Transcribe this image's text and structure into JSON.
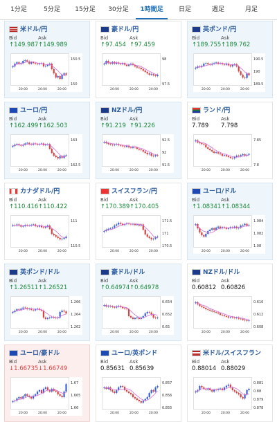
{
  "tabs": [
    "1分足",
    "5分足",
    "15分足",
    "30分足",
    "1時間足",
    "日足",
    "週足",
    "月足"
  ],
  "active_tab": "1時間足",
  "colors": {
    "up": "#3a5fd9",
    "down": "#d94040",
    "ma": "#d66bd8",
    "header": "#2b5b9e"
  },
  "labels": {
    "bid": "Bid",
    "ask": "Ask"
  },
  "pairs": [
    {
      "name": "米ドル/円",
      "bid": "↑149.987",
      "ask": "↑149.989",
      "flag": "US",
      "bg": "blue",
      "yticks": [
        "150.5",
        "150"
      ],
      "xticks": [
        "20:00",
        "20:00",
        "20:00"
      ]
    },
    {
      "name": "豪ドル/円",
      "bid": "↑97.454",
      "ask": "↑97.459",
      "flag": "AU",
      "bg": "plain",
      "yticks": [
        "98",
        "97.5"
      ],
      "xticks": [
        "20:00",
        "20:00",
        "20:00"
      ]
    },
    {
      "name": "英ポンド/円",
      "bid": "↑189.755",
      "ask": "↑189.762",
      "flag": "GB",
      "bg": "blue",
      "yticks": [
        "190.5",
        "190",
        "189.5"
      ],
      "xticks": [
        "20:00",
        "20:00",
        "20:00"
      ]
    },
    {
      "name": "ユーロ/円",
      "bid": "↑162.499",
      "ask": "↑162.503",
      "flag": "EU",
      "bg": "blue",
      "yticks": [
        "163",
        "162.5"
      ],
      "xticks": [
        "20:00",
        "20:00",
        "20:00"
      ]
    },
    {
      "name": "NZドル/円",
      "bid": "↑91.219",
      "ask": "↑91.226",
      "flag": "NZ",
      "bg": "blue",
      "yticks": [
        "92.5",
        "92",
        "91.5"
      ],
      "xticks": [
        "20:00",
        "20:00",
        "20:00"
      ]
    },
    {
      "name": "ランド/円",
      "bid": "7.789",
      "ask": "7.798",
      "flag": "ZA",
      "bg": "plain",
      "yticks": [
        "7.85",
        "7.8"
      ],
      "xticks": [
        "20:00",
        "20:00",
        "20:00"
      ]
    },
    {
      "name": "カナダドル/円",
      "bid": "↑110.416",
      "ask": "↑110.422",
      "flag": "CA",
      "bg": "plain",
      "yticks": [
        "111",
        "110.5"
      ],
      "xticks": [
        "20:00",
        "20:00",
        "20:00"
      ]
    },
    {
      "name": "スイスフラン/円",
      "bid": "↑170.389",
      "ask": "↑170.405",
      "flag": "CH",
      "bg": "plain",
      "yticks": [
        "171.5",
        "171",
        "170.5"
      ],
      "xticks": [
        "20:00",
        "20:00",
        "20:00"
      ]
    },
    {
      "name": "ユーロ/ドル",
      "bid": "↑1.08341",
      "ask": "↑1.08344",
      "flag": "EU",
      "bg": "blue",
      "yticks": [
        "1.084",
        "1.082",
        "1.08"
      ],
      "xticks": [
        "20:00",
        "20:00",
        "20:00"
      ]
    },
    {
      "name": "英ポンド/ドル",
      "bid": "↑1.26511",
      "ask": "↑1.26521",
      "flag": "GB",
      "bg": "blue",
      "yticks": [
        "1.266",
        "1.264",
        "1.262"
      ],
      "xticks": [
        "20:00",
        "20:00",
        "20:00"
      ]
    },
    {
      "name": "豪ドル/ドル",
      "bid": "↑0.64974",
      "ask": "↑0.64978",
      "flag": "AU",
      "bg": "blue",
      "yticks": [
        "0.654",
        "0.652",
        "0.65"
      ],
      "xticks": [
        "20:00",
        "20:00",
        "20:00"
      ]
    },
    {
      "name": "NZドル/ドル",
      "bid": "0.60812",
      "ask": "0.60826",
      "flag": "NZ",
      "bg": "plain",
      "yticks": [
        "0.616",
        "0.612",
        "0.608"
      ],
      "xticks": [
        "20:00",
        "20:00",
        "20:00"
      ]
    },
    {
      "name": "ユーロ/豪ドル",
      "bid": "↓1.66735",
      "ask": "↓1.66749",
      "flag": "EU",
      "bg": "red",
      "yticks": [
        "1.67",
        "1.665",
        "1.66"
      ],
      "xticks": [
        "20:00",
        "20:00",
        "20:00"
      ]
    },
    {
      "name": "ユーロ/英ポンド",
      "bid": "0.85631",
      "ask": "0.85639",
      "flag": "EU",
      "bg": "plain",
      "yticks": [
        "0.857",
        "0.856",
        "0.855"
      ],
      "xticks": [
        "20:00",
        "20:00",
        "20:00"
      ]
    },
    {
      "name": "米ドル/スイスフラン",
      "bid": "0.88014",
      "ask": "0.88029",
      "flag": "US",
      "bg": "plain",
      "yticks": [
        "0.881",
        "0.88",
        "0.879",
        "0.878"
      ],
      "xticks": [
        "20:00",
        "20:00",
        "20:00"
      ]
    }
  ],
  "series": [
    [
      0.6,
      0.7,
      0.75,
      0.7,
      0.72,
      0.8,
      0.82,
      0.78,
      0.7,
      0.75,
      0.72,
      0.7,
      0.68,
      0.7,
      0.72,
      0.6,
      0.62,
      0.66,
      0.7,
      0.5,
      0.35,
      0.2,
      0.25,
      0.15,
      0.3,
      0.35,
      0.3
    ],
    [
      0.7,
      0.8,
      0.72,
      0.7,
      0.76,
      0.7,
      0.74,
      0.7,
      0.68,
      0.72,
      0.66,
      0.62,
      0.66,
      0.7,
      0.65,
      0.6,
      0.56,
      0.55,
      0.5,
      0.45,
      0.4,
      0.35,
      0.3,
      0.32,
      0.28,
      0.25,
      0.3
    ],
    [
      0.55,
      0.6,
      0.58,
      0.62,
      0.7,
      0.72,
      0.68,
      0.66,
      0.7,
      0.72,
      0.74,
      0.7,
      0.72,
      0.68,
      0.66,
      0.7,
      0.64,
      0.6,
      0.66,
      0.68,
      0.6,
      0.42,
      0.3,
      0.2,
      0.18,
      0.35,
      0.28
    ],
    [
      0.65,
      0.7,
      0.72,
      0.68,
      0.66,
      0.7,
      0.74,
      0.76,
      0.72,
      0.7,
      0.74,
      0.72,
      0.7,
      0.72,
      0.74,
      0.68,
      0.7,
      0.72,
      0.55,
      0.4,
      0.3,
      0.25,
      0.2,
      0.28,
      0.22,
      0.3,
      0.32
    ],
    [
      0.8,
      0.75,
      0.72,
      0.7,
      0.68,
      0.7,
      0.72,
      0.68,
      0.66,
      0.64,
      0.62,
      0.66,
      0.6,
      0.58,
      0.62,
      0.6,
      0.55,
      0.52,
      0.5,
      0.45,
      0.4,
      0.35,
      0.38,
      0.3,
      0.28,
      0.32,
      0.3
    ],
    [
      0.85,
      0.78,
      0.75,
      0.72,
      0.7,
      0.6,
      0.55,
      0.5,
      0.45,
      0.4,
      0.42,
      0.38,
      0.35,
      0.3,
      0.32,
      0.28,
      0.25,
      0.22,
      0.2,
      0.25,
      0.3,
      0.28,
      0.32,
      0.35,
      0.3,
      0.33,
      0.36
    ],
    [
      0.72,
      0.7,
      0.74,
      0.7,
      0.66,
      0.68,
      0.72,
      0.7,
      0.7,
      0.72,
      0.74,
      0.68,
      0.66,
      0.7,
      0.64,
      0.62,
      0.66,
      0.7,
      0.58,
      0.4,
      0.35,
      0.3,
      0.25,
      0.2,
      0.22,
      0.25,
      0.3
    ],
    [
      0.5,
      0.55,
      0.58,
      0.6,
      0.62,
      0.7,
      0.74,
      0.8,
      0.76,
      0.72,
      0.75,
      0.78,
      0.76,
      0.74,
      0.76,
      0.72,
      0.74,
      0.7,
      0.74,
      0.55,
      0.38,
      0.3,
      0.25,
      0.2,
      0.22,
      0.28,
      0.3
    ],
    [
      0.75,
      0.6,
      0.45,
      0.35,
      0.3,
      0.4,
      0.5,
      0.55,
      0.6,
      0.55,
      0.62,
      0.66,
      0.6,
      0.64,
      0.62,
      0.58,
      0.6,
      0.64,
      0.62,
      0.66,
      0.6,
      0.62,
      0.7,
      0.72,
      0.76,
      0.7,
      0.72
    ],
    [
      0.5,
      0.55,
      0.6,
      0.58,
      0.62,
      0.66,
      0.64,
      0.6,
      0.62,
      0.58,
      0.56,
      0.6,
      0.62,
      0.58,
      0.55,
      0.3,
      0.25,
      0.28,
      0.3,
      0.32,
      0.3,
      0.28,
      0.3,
      0.5,
      0.55,
      0.52,
      0.45
    ],
    [
      0.75,
      0.7,
      0.72,
      0.7,
      0.68,
      0.66,
      0.7,
      0.72,
      0.68,
      0.64,
      0.62,
      0.6,
      0.35,
      0.3,
      0.25,
      0.28,
      0.3,
      0.25,
      0.3,
      0.35,
      0.45,
      0.5,
      0.48,
      0.4,
      0.3,
      0.28,
      0.3
    ],
    [
      0.85,
      0.78,
      0.72,
      0.68,
      0.65,
      0.6,
      0.58,
      0.55,
      0.52,
      0.5,
      0.48,
      0.45,
      0.4,
      0.38,
      0.35,
      0.34,
      0.3,
      0.32,
      0.3,
      0.28,
      0.3,
      0.26,
      0.25,
      0.22,
      0.2,
      0.18,
      0.2
    ],
    [
      0.2,
      0.22,
      0.3,
      0.35,
      0.3,
      0.38,
      0.45,
      0.4,
      0.35,
      0.3,
      0.4,
      0.45,
      0.55,
      0.6,
      0.5,
      0.65,
      0.7,
      0.6,
      0.55,
      0.65,
      0.58,
      0.55,
      0.45,
      0.4,
      0.35,
      0.55,
      0.82
    ],
    [
      0.7,
      0.65,
      0.7,
      0.6,
      0.55,
      0.5,
      0.6,
      0.7,
      0.75,
      0.72,
      0.6,
      0.55,
      0.5,
      0.45,
      0.35,
      0.3,
      0.25,
      0.2,
      0.15,
      0.22,
      0.28,
      0.35,
      0.5,
      0.6,
      0.55,
      0.7,
      0.75
    ],
    [
      0.55,
      0.6,
      0.75,
      0.7,
      0.65,
      0.62,
      0.66,
      0.6,
      0.55,
      0.62,
      0.6,
      0.64,
      0.66,
      0.6,
      0.7,
      0.76,
      0.8,
      0.7,
      0.6,
      0.55,
      0.5,
      0.45,
      0.35,
      0.3,
      0.45,
      0.6,
      0.65
    ]
  ]
}
